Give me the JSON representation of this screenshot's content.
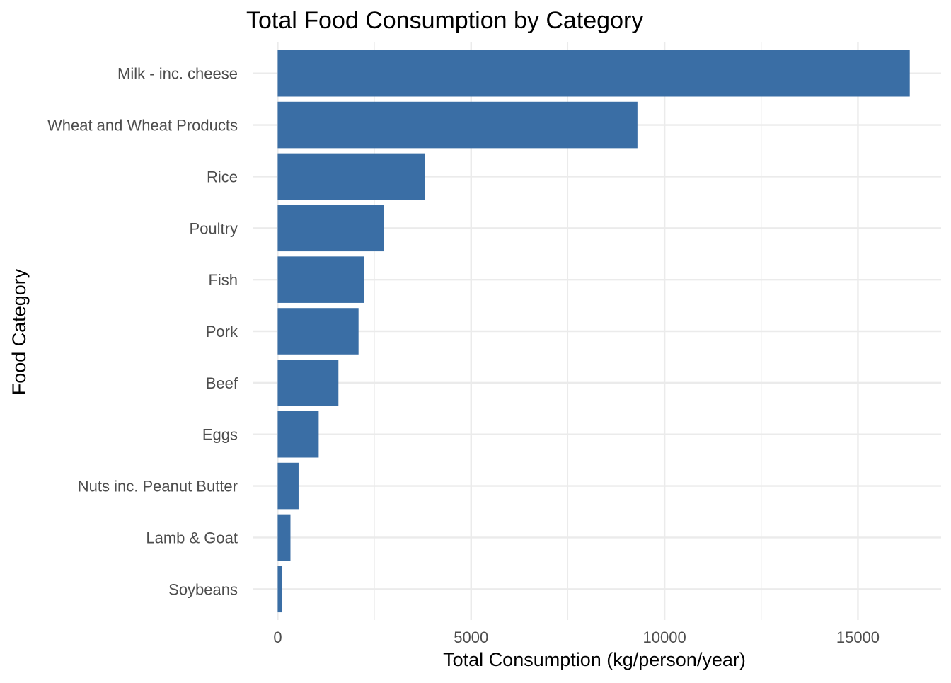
{
  "chart_data": {
    "type": "bar",
    "orientation": "horizontal",
    "title": "Total Food Consumption by Category",
    "xlabel": "Total Consumption (kg/person/year)",
    "ylabel": "Food Category",
    "categories": [
      "Milk - inc. cheese",
      "Wheat and Wheat Products",
      "Rice",
      "Poultry",
      "Fish",
      "Pork",
      "Beef",
      "Eggs",
      "Nuts inc. Peanut Butter",
      "Lamb & Goat",
      "Soybeans"
    ],
    "values": [
      16340,
      9300,
      3810,
      2750,
      2240,
      2090,
      1570,
      1060,
      540,
      330,
      120
    ],
    "xlim": [
      -630,
      17150
    ],
    "xticks": [
      0,
      5000,
      10000,
      15000
    ],
    "xtick_labels": [
      "0",
      "5000",
      "10000",
      "15000"
    ],
    "grid": true,
    "bar_color": "#3A6EA5",
    "grid_color": "#EBEBEB"
  }
}
